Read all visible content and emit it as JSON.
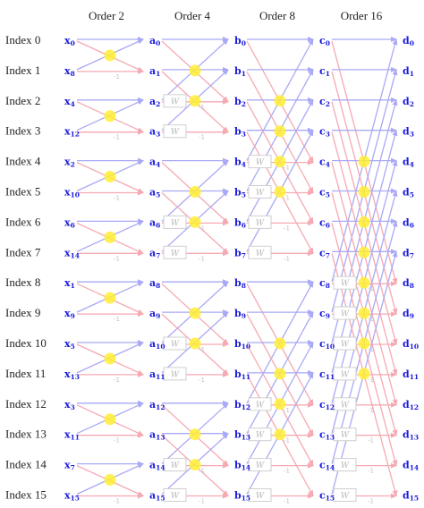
{
  "headers": [
    "Order 2",
    "Order 4",
    "Order 8",
    "Order 16"
  ],
  "index_labels": [
    "Index 0",
    "Index 1",
    "Index 2",
    "Index 3",
    "Index 4",
    "Index 5",
    "Index 6",
    "Index 7",
    "Index 8",
    "Index 9",
    "Index 10",
    "Index 11",
    "Index 12",
    "Index 13",
    "Index 14",
    "Index 15"
  ],
  "stages": [
    {
      "letter": "x",
      "subscripts": [
        "0",
        "8",
        "4",
        "12",
        "2",
        "10",
        "6",
        "14",
        "1",
        "9",
        "5",
        "13",
        "3",
        "11",
        "7",
        "15"
      ]
    },
    {
      "letter": "a",
      "subscripts": [
        "0",
        "1",
        "2",
        "3",
        "4",
        "5",
        "6",
        "7",
        "8",
        "9",
        "10",
        "11",
        "12",
        "13",
        "14",
        "15"
      ]
    },
    {
      "letter": "b",
      "subscripts": [
        "0",
        "1",
        "2",
        "3",
        "4",
        "5",
        "6",
        "7",
        "8",
        "9",
        "10",
        "11",
        "12",
        "13",
        "14",
        "15"
      ]
    },
    {
      "letter": "c",
      "subscripts": [
        "0",
        "1",
        "2",
        "3",
        "4",
        "5",
        "6",
        "7",
        "8",
        "9",
        "10",
        "11",
        "12",
        "13",
        "14",
        "15"
      ]
    },
    {
      "letter": "d",
      "subscripts": [
        "0",
        "1",
        "2",
        "3",
        "4",
        "5",
        "6",
        "7",
        "8",
        "9",
        "10",
        "11",
        "12",
        "13",
        "14",
        "15"
      ]
    }
  ],
  "twiddle_label": "W",
  "negate_label": "-1",
  "colors": {
    "upper_path": "#a9a9f5",
    "lower_path": "#f5a9b2",
    "crossing": "#ffee33",
    "node_text": "#1a1adb",
    "twiddle_box": "#cfcfcf"
  }
}
